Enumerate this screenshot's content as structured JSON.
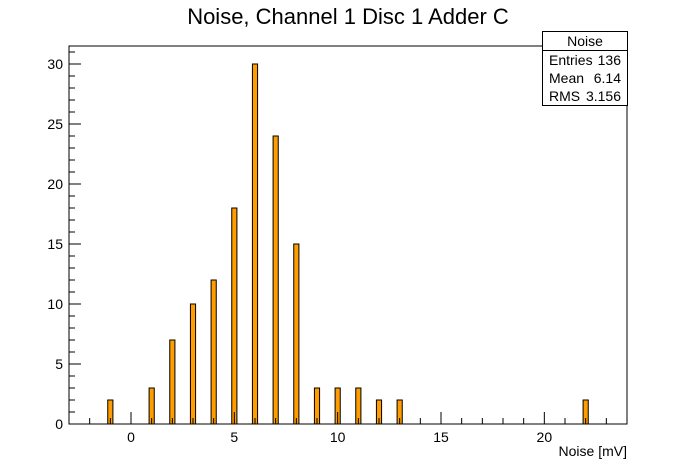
{
  "chart_data": {
    "type": "bar",
    "title": "Noise, Channel 1 Disc 1 Adder C",
    "xlabel": "Noise [mV]",
    "ylabel": "",
    "xlim": [
      -3,
      24
    ],
    "ylim": [
      0,
      31.5
    ],
    "x_ticks": [
      0,
      5,
      10,
      15,
      20
    ],
    "y_ticks": [
      0,
      5,
      10,
      15,
      20,
      25,
      30
    ],
    "bar_width": 0.25,
    "x": [
      -1,
      1,
      2,
      3,
      4,
      5,
      6,
      7,
      8,
      9,
      10,
      11,
      12,
      13,
      22
    ],
    "values": [
      2,
      3,
      7,
      10,
      12,
      18,
      30,
      24,
      15,
      3,
      3,
      3,
      2,
      2,
      2
    ],
    "fill_color": "#ff9d00",
    "edge_color": "#000000",
    "grid": false,
    "stats": {
      "name": "Noise",
      "rows": [
        {
          "label": "Entries",
          "value": "136"
        },
        {
          "label": "Mean",
          "value": "6.14"
        },
        {
          "label": "RMS",
          "value": "3.156"
        }
      ]
    }
  }
}
